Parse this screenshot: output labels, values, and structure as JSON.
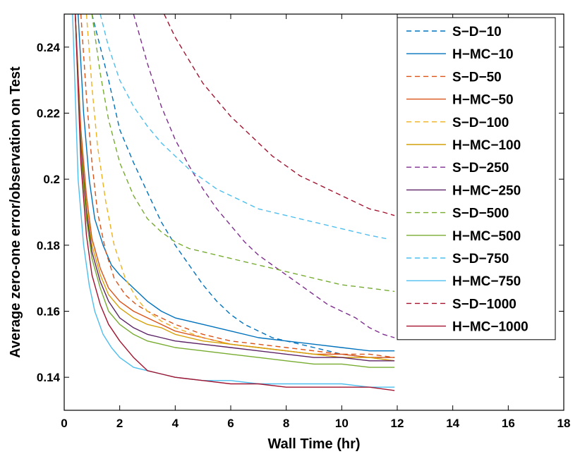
{
  "chart_data": {
    "type": "line",
    "title": "",
    "xlabel": "Wall Time (hr)",
    "ylabel": "Average zero-one error/observation on Test",
    "xlim": [
      0,
      18
    ],
    "ylim": [
      0.13,
      0.25
    ],
    "xticks": [
      0,
      2,
      4,
      6,
      8,
      10,
      12,
      14,
      16,
      18
    ],
    "yticks": [
      0.14,
      0.16,
      0.18,
      0.2,
      0.22,
      0.24
    ],
    "xtick_labels": [
      "0",
      "2",
      "4",
      "6",
      "8",
      "10",
      "12",
      "14",
      "16",
      "18"
    ],
    "ytick_labels": [
      "0.14",
      "0.16",
      "0.18",
      "0.2",
      "0.22",
      "0.24"
    ],
    "grid": false,
    "legend_position": "top-right",
    "series": [
      {
        "name": "S-D-10",
        "color": "#0072BD",
        "dash": true,
        "x": [
          1.0,
          1.3,
          1.6,
          2.0,
          2.5,
          3.0,
          3.5,
          4.0,
          4.5,
          5.0,
          5.5,
          6.0,
          6.5,
          7.0,
          7.5,
          8.0,
          9.0,
          10.0,
          11.0,
          11.9
        ],
        "y": [
          0.25,
          0.24,
          0.23,
          0.215,
          0.205,
          0.196,
          0.187,
          0.18,
          0.174,
          0.168,
          0.163,
          0.159,
          0.156,
          0.154,
          0.152,
          0.151,
          0.149,
          0.147,
          0.146,
          0.146
        ]
      },
      {
        "name": "H-MC-10",
        "color": "#0072BD",
        "dash": false,
        "x": [
          0.5,
          0.7,
          0.9,
          1.1,
          1.4,
          1.7,
          2.0,
          2.5,
          3.0,
          3.5,
          4.0,
          5.0,
          6.0,
          7.0,
          8.0,
          9.0,
          10.0,
          11.0,
          11.9
        ],
        "y": [
          0.25,
          0.22,
          0.2,
          0.188,
          0.18,
          0.174,
          0.171,
          0.167,
          0.163,
          0.16,
          0.158,
          0.156,
          0.154,
          0.152,
          0.151,
          0.15,
          0.149,
          0.148,
          0.148
        ]
      },
      {
        "name": "S-D-50",
        "color": "#D95319",
        "dash": true,
        "x": [
          0.6,
          0.8,
          1.0,
          1.2,
          1.5,
          1.8,
          2.2,
          2.6,
          3.0,
          3.5,
          4.0,
          5.0,
          6.0,
          7.0,
          8.0,
          9.0,
          10.0,
          11.0,
          11.9
        ],
        "y": [
          0.25,
          0.225,
          0.205,
          0.19,
          0.178,
          0.17,
          0.165,
          0.162,
          0.16,
          0.158,
          0.156,
          0.153,
          0.151,
          0.15,
          0.149,
          0.148,
          0.147,
          0.147,
          0.146
        ]
      },
      {
        "name": "H-MC-50",
        "color": "#D95319",
        "dash": false,
        "x": [
          0.4,
          0.6,
          0.8,
          1.0,
          1.3,
          1.6,
          2.0,
          2.5,
          3.0,
          3.5,
          4.0,
          5.0,
          6.0,
          7.0,
          8.0,
          9.0,
          10.0,
          11.0,
          11.9
        ],
        "y": [
          0.25,
          0.215,
          0.195,
          0.182,
          0.173,
          0.167,
          0.163,
          0.16,
          0.158,
          0.156,
          0.154,
          0.152,
          0.15,
          0.149,
          0.148,
          0.147,
          0.147,
          0.146,
          0.146
        ]
      },
      {
        "name": "S-D-100",
        "color": "#EDB120",
        "dash": true,
        "x": [
          0.8,
          1.0,
          1.2,
          1.5,
          1.8,
          2.2,
          2.6,
          3.0,
          3.5,
          4.0,
          5.0,
          6.0,
          7.0,
          8.0,
          9.0,
          10.0,
          11.0,
          11.9
        ],
        "y": [
          0.25,
          0.228,
          0.21,
          0.193,
          0.18,
          0.17,
          0.164,
          0.16,
          0.157,
          0.155,
          0.152,
          0.15,
          0.149,
          0.148,
          0.147,
          0.146,
          0.146,
          0.145
        ]
      },
      {
        "name": "H-MC-100",
        "color": "#D4A10A",
        "dash": false,
        "x": [
          0.4,
          0.6,
          0.8,
          1.0,
          1.3,
          1.6,
          2.0,
          2.5,
          3.0,
          3.5,
          4.0,
          5.0,
          6.0,
          7.0,
          8.0,
          9.0,
          10.0,
          11.0,
          11.9
        ],
        "y": [
          0.25,
          0.212,
          0.192,
          0.18,
          0.171,
          0.165,
          0.161,
          0.158,
          0.156,
          0.155,
          0.153,
          0.151,
          0.15,
          0.149,
          0.148,
          0.147,
          0.146,
          0.146,
          0.145
        ]
      },
      {
        "name": "S-D-250",
        "color": "#7E2F8E",
        "dash": true,
        "x": [
          2.5,
          3.0,
          3.5,
          4.0,
          4.5,
          5.0,
          5.5,
          6.0,
          6.5,
          7.0,
          7.5,
          8.0,
          8.5,
          9.0,
          9.5,
          10.0,
          10.5,
          11.0,
          11.5,
          11.9
        ],
        "y": [
          0.25,
          0.235,
          0.222,
          0.212,
          0.204,
          0.197,
          0.191,
          0.186,
          0.181,
          0.177,
          0.174,
          0.171,
          0.168,
          0.165,
          0.162,
          0.16,
          0.158,
          0.155,
          0.153,
          0.152
        ]
      },
      {
        "name": "H-MC-250",
        "color": "#5B2366",
        "dash": false,
        "x": [
          0.4,
          0.6,
          0.8,
          1.0,
          1.3,
          1.6,
          2.0,
          2.5,
          3.0,
          3.5,
          4.0,
          5.0,
          6.0,
          7.0,
          8.0,
          9.0,
          10.0,
          11.0,
          11.9
        ],
        "y": [
          0.25,
          0.21,
          0.19,
          0.178,
          0.169,
          0.163,
          0.158,
          0.155,
          0.153,
          0.152,
          0.151,
          0.15,
          0.149,
          0.148,
          0.147,
          0.146,
          0.146,
          0.145,
          0.145
        ]
      },
      {
        "name": "S-D-500",
        "color": "#77AC30",
        "dash": true,
        "x": [
          1.0,
          1.3,
          1.6,
          2.0,
          2.5,
          3.0,
          3.5,
          4.0,
          4.5,
          5.0,
          5.5,
          6.0,
          6.5,
          7.0,
          8.0,
          9.0,
          10.0,
          11.0,
          11.9
        ],
        "y": [
          0.25,
          0.232,
          0.218,
          0.205,
          0.195,
          0.188,
          0.184,
          0.181,
          0.179,
          0.178,
          0.177,
          0.176,
          0.175,
          0.174,
          0.172,
          0.17,
          0.168,
          0.167,
          0.166
        ]
      },
      {
        "name": "H-MC-500",
        "color": "#77AC30",
        "dash": false,
        "x": [
          0.4,
          0.6,
          0.8,
          1.0,
          1.3,
          1.6,
          2.0,
          2.5,
          3.0,
          3.5,
          4.0,
          5.0,
          6.0,
          7.0,
          8.0,
          9.0,
          10.0,
          11.0,
          11.9
        ],
        "y": [
          0.25,
          0.208,
          0.188,
          0.176,
          0.167,
          0.16,
          0.156,
          0.153,
          0.151,
          0.15,
          0.149,
          0.148,
          0.147,
          0.146,
          0.145,
          0.144,
          0.144,
          0.143,
          0.143
        ]
      },
      {
        "name": "S-D-750",
        "color": "#4DBEEE",
        "dash": true,
        "x": [
          1.3,
          1.6,
          2.0,
          2.5,
          3.0,
          3.5,
          4.0,
          4.5,
          5.0,
          5.5,
          6.0,
          6.5,
          7.0,
          7.5,
          8.0,
          8.5,
          9.0,
          10.0,
          11.0,
          11.6
        ],
        "y": [
          0.25,
          0.24,
          0.23,
          0.222,
          0.216,
          0.211,
          0.207,
          0.203,
          0.2,
          0.197,
          0.195,
          0.193,
          0.191,
          0.19,
          0.189,
          0.188,
          0.187,
          0.185,
          0.183,
          0.182
        ]
      },
      {
        "name": "H-MC-750",
        "color": "#4DBEEE",
        "dash": false,
        "x": [
          0.3,
          0.5,
          0.7,
          0.9,
          1.1,
          1.4,
          1.7,
          2.0,
          2.5,
          3.0,
          3.5,
          4.0,
          5.0,
          6.0,
          7.0,
          8.0,
          9.0,
          10.0,
          11.0,
          11.9
        ],
        "y": [
          0.25,
          0.2,
          0.18,
          0.168,
          0.16,
          0.153,
          0.149,
          0.146,
          0.143,
          0.142,
          0.141,
          0.14,
          0.139,
          0.139,
          0.138,
          0.138,
          0.138,
          0.138,
          0.137,
          0.137
        ]
      },
      {
        "name": "S-D-1000",
        "color": "#A2142F",
        "dash": true,
        "x": [
          3.6,
          4.0,
          4.5,
          5.0,
          5.5,
          6.0,
          6.5,
          7.0,
          7.5,
          8.0,
          8.5,
          9.0,
          9.5,
          10.0,
          10.5,
          11.0,
          11.5,
          11.9
        ],
        "y": [
          0.25,
          0.243,
          0.236,
          0.229,
          0.224,
          0.219,
          0.215,
          0.211,
          0.207,
          0.204,
          0.201,
          0.199,
          0.197,
          0.195,
          0.193,
          0.191,
          0.19,
          0.189
        ]
      },
      {
        "name": "H-MC-1000",
        "color": "#A2142F",
        "dash": false,
        "x": [
          0.4,
          0.6,
          0.8,
          1.0,
          1.3,
          1.6,
          2.0,
          2.5,
          3.0,
          3.5,
          4.0,
          5.0,
          6.0,
          7.0,
          8.0,
          9.0,
          10.0,
          11.0,
          11.9
        ],
        "y": [
          0.25,
          0.205,
          0.183,
          0.171,
          0.162,
          0.156,
          0.151,
          0.146,
          0.142,
          0.141,
          0.14,
          0.139,
          0.138,
          0.138,
          0.137,
          0.137,
          0.137,
          0.137,
          0.136
        ]
      }
    ]
  }
}
